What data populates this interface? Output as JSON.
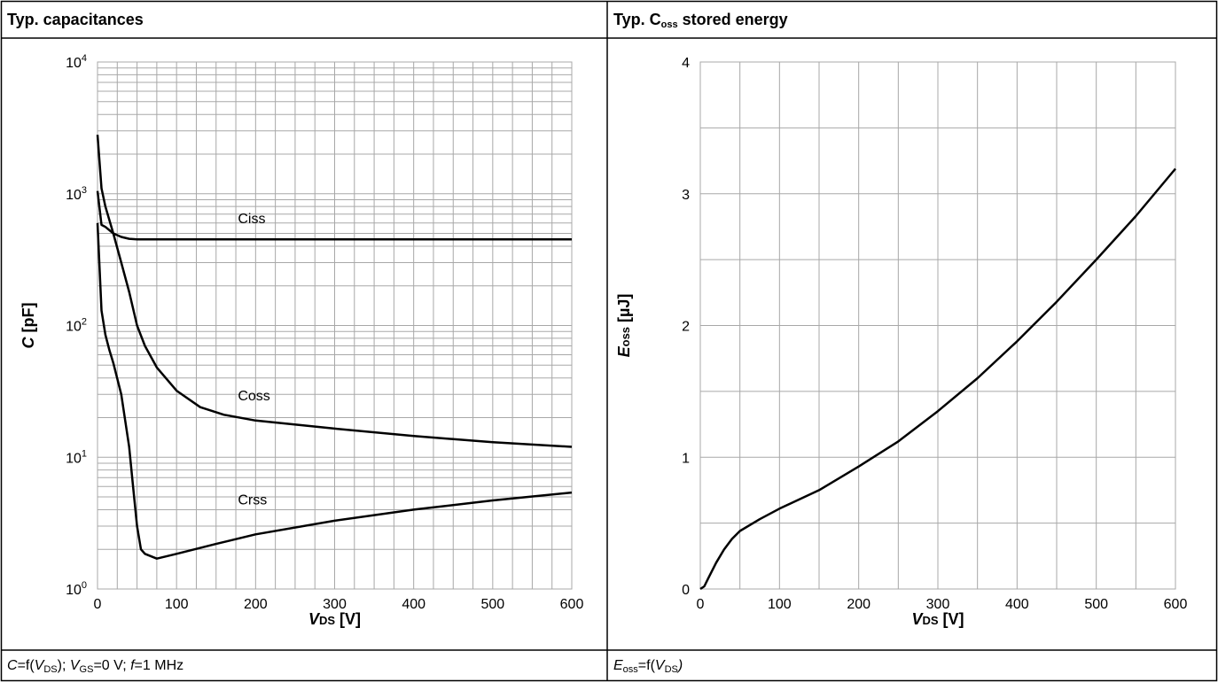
{
  "panels": [
    {
      "title": "Typ. capacitances",
      "caption": {
        "c": "C",
        "eq1": "=f(",
        "v1": "V",
        "s1": "DS",
        "rest1": ");  ",
        "v2": "V",
        "s2": "GS",
        "rest2": "=0 V; ",
        "f": "f",
        "rest3": "=1 MHz"
      }
    },
    {
      "title_main": "Typ. C",
      "title_sub": "oss",
      "title_rest": " stored energy",
      "caption": {
        "e": "E",
        "s1": "oss",
        "eq": "=f(",
        "v": "V",
        "s2": "DS",
        "close": ")"
      }
    }
  ],
  "chart_data": [
    {
      "type": "line",
      "title": "Typ. capacitances",
      "xlabel": "VDS [V]",
      "xlabel_parts": {
        "main": "V",
        "sub": "DS",
        "unit": " [V]"
      },
      "ylabel": "C [pF]",
      "ylabel_parts": {
        "main": "C",
        "unit": " [pF]"
      },
      "xlim": [
        0,
        600
      ],
      "x_ticks": [
        "0",
        "100",
        "200",
        "300",
        "400",
        "500",
        "600"
      ],
      "yscale": "log",
      "ylim": [
        1,
        10000
      ],
      "y_ticks": [
        {
          "base": "10",
          "exp": "0"
        },
        {
          "base": "10",
          "exp": "1"
        },
        {
          "base": "10",
          "exp": "2"
        },
        {
          "base": "10",
          "exp": "3"
        },
        {
          "base": "10",
          "exp": "4"
        }
      ],
      "grid": true,
      "series": [
        {
          "name": "Ciss",
          "label_at": [
            200,
            600
          ],
          "points": [
            [
              0,
              1050
            ],
            [
              5,
              580
            ],
            [
              10,
              560
            ],
            [
              20,
              500
            ],
            [
              30,
              470
            ],
            [
              40,
              455
            ],
            [
              50,
              450
            ],
            [
              100,
              450
            ],
            [
              200,
              450
            ],
            [
              300,
              450
            ],
            [
              400,
              450
            ],
            [
              500,
              450
            ],
            [
              600,
              450
            ]
          ]
        },
        {
          "name": "Coss",
          "label_at": [
            200,
            27
          ],
          "points": [
            [
              0,
              2800
            ],
            [
              5,
              1100
            ],
            [
              10,
              800
            ],
            [
              20,
              500
            ],
            [
              30,
              300
            ],
            [
              40,
              180
            ],
            [
              50,
              100
            ],
            [
              60,
              70
            ],
            [
              75,
              48
            ],
            [
              100,
              32
            ],
            [
              130,
              24
            ],
            [
              160,
              21
            ],
            [
              200,
              19
            ],
            [
              300,
              16.5
            ],
            [
              400,
              14.5
            ],
            [
              500,
              13
            ],
            [
              600,
              12
            ]
          ]
        },
        {
          "name": "Crss",
          "label_at": [
            200,
            4.4
          ],
          "points": [
            [
              0,
              600
            ],
            [
              5,
              130
            ],
            [
              10,
              85
            ],
            [
              15,
              65
            ],
            [
              20,
              52
            ],
            [
              30,
              30
            ],
            [
              40,
              12
            ],
            [
              45,
              6
            ],
            [
              50,
              3
            ],
            [
              55,
              2.0
            ],
            [
              60,
              1.85
            ],
            [
              75,
              1.7
            ],
            [
              100,
              1.85
            ],
            [
              150,
              2.2
            ],
            [
              200,
              2.6
            ],
            [
              300,
              3.3
            ],
            [
              400,
              4.0
            ],
            [
              500,
              4.7
            ],
            [
              600,
              5.4
            ]
          ]
        }
      ]
    },
    {
      "type": "line",
      "title": "Typ. Coss stored energy",
      "xlabel": "VDS [V]",
      "xlabel_parts": {
        "main": "V",
        "sub": "DS",
        "unit": " [V]"
      },
      "ylabel": "Eoss [µJ]",
      "ylabel_parts": {
        "main": "E",
        "sub": "oss",
        "unit": " [µJ]"
      },
      "xlim": [
        0,
        600
      ],
      "x_ticks": [
        "0",
        "100",
        "200",
        "300",
        "400",
        "500",
        "600"
      ],
      "ylim": [
        0,
        4
      ],
      "y_ticks": [
        "0",
        "1",
        "2",
        "3",
        "4"
      ],
      "grid": true,
      "series": [
        {
          "name": "",
          "points": [
            [
              0,
              0
            ],
            [
              5,
              0.02
            ],
            [
              10,
              0.08
            ],
            [
              20,
              0.2
            ],
            [
              30,
              0.3
            ],
            [
              40,
              0.38
            ],
            [
              50,
              0.44
            ],
            [
              75,
              0.53
            ],
            [
              100,
              0.61
            ],
            [
              150,
              0.75
            ],
            [
              200,
              0.93
            ],
            [
              250,
              1.12
            ],
            [
              300,
              1.35
            ],
            [
              350,
              1.6
            ],
            [
              400,
              1.88
            ],
            [
              450,
              2.18
            ],
            [
              500,
              2.5
            ],
            [
              550,
              2.83
            ],
            [
              600,
              3.19
            ]
          ]
        }
      ]
    }
  ]
}
